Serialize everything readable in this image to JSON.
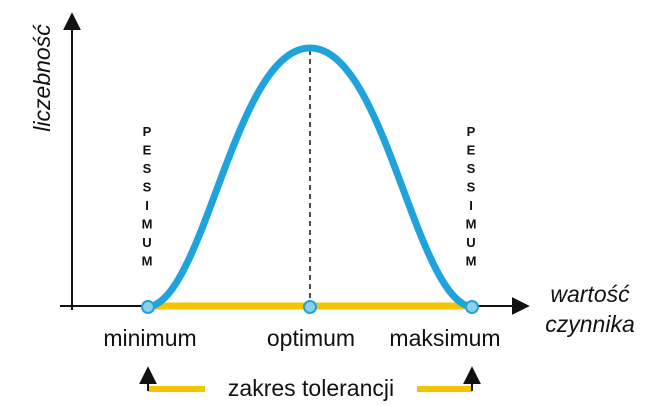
{
  "y_axis": {
    "label": "liczebność"
  },
  "x_axis": {
    "label_lines": [
      "wartość",
      "czynnika"
    ]
  },
  "points": {
    "minimum": "minimum",
    "optimum": "optimum",
    "maksimum": "maksimum"
  },
  "pessimum": {
    "left": "PESSIMUM",
    "right": "PESSIMUM"
  },
  "range": {
    "label": "zakres tolerancji"
  }
}
